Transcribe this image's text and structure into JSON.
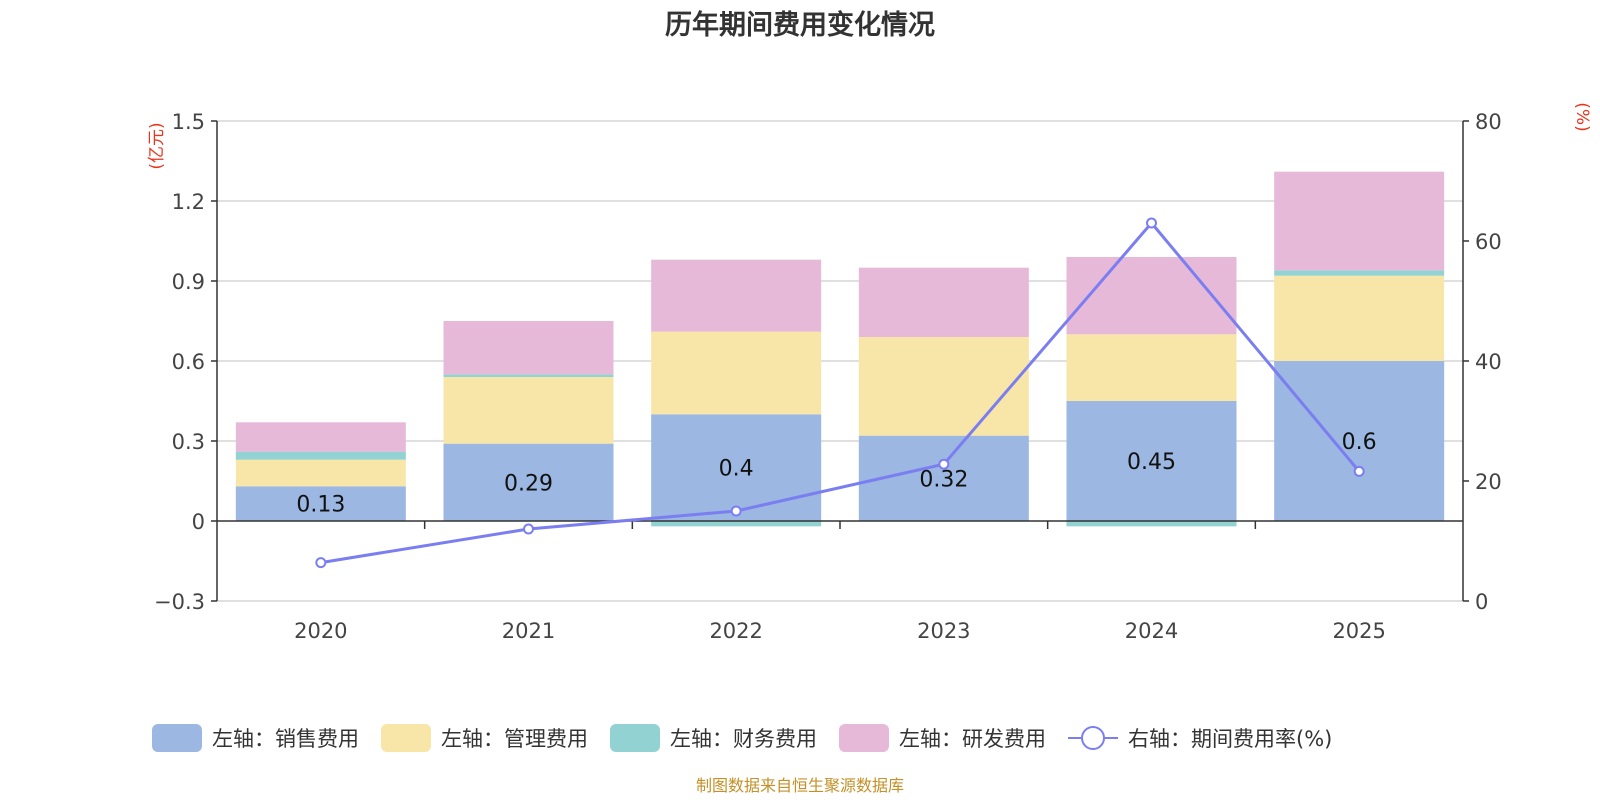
{
  "chart_data": {
    "type": "bar",
    "title": "历年期间费用变化情况",
    "categories": [
      "2020",
      "2021",
      "2022",
      "2023",
      "2024",
      "2025"
    ],
    "left_axis": {
      "unit_label": "(亿元)",
      "ylim": [
        -0.3,
        1.5
      ],
      "ticks": [
        -0.3,
        0,
        0.3,
        0.6,
        0.9,
        1.2,
        1.5
      ],
      "tick_labels": [
        "−0.3",
        "0",
        "0.3",
        "0.6",
        "0.9",
        "1.2",
        "1.5"
      ]
    },
    "right_axis": {
      "unit_label": "(%)",
      "ylim": [
        0,
        80
      ],
      "ticks": [
        0,
        20,
        40,
        60,
        80
      ],
      "tick_labels": [
        "0",
        "20",
        "40",
        "60",
        "80"
      ]
    },
    "series": [
      {
        "name": "左轴：销售费用",
        "kind": "bar",
        "color": "#9bb7e2",
        "values": [
          0.13,
          0.29,
          0.4,
          0.32,
          0.45,
          0.6
        ],
        "labels": [
          "0.13",
          "0.29",
          "0.4",
          "0.32",
          "0.45",
          "0.6"
        ]
      },
      {
        "name": "左轴：管理费用",
        "kind": "bar",
        "color": "#f8e6a8",
        "values": [
          0.1,
          0.25,
          0.31,
          0.37,
          0.25,
          0.32
        ]
      },
      {
        "name": "左轴：财务费用",
        "kind": "bar",
        "color": "#93d2d2",
        "values": [
          0.03,
          0.01,
          -0.02,
          0.0,
          -0.02,
          0.02
        ]
      },
      {
        "name": "左轴：研发费用",
        "kind": "bar",
        "color": "#e7b9d9",
        "values": [
          0.11,
          0.2,
          0.27,
          0.26,
          0.29,
          0.37
        ]
      },
      {
        "name": "右轴：期间费用率(%)",
        "kind": "line",
        "axis": "right",
        "color": "#7b7ef0",
        "values": [
          6.4,
          12.0,
          15.0,
          22.8,
          63.0,
          21.6
        ]
      }
    ],
    "footer": "制图数据来自恒生聚源数据库",
    "colors": {
      "title": "#333333",
      "axis_text": "#444444",
      "unit": "#e8341c",
      "grid": "#d6d6d6",
      "footer": "#c49028"
    }
  }
}
